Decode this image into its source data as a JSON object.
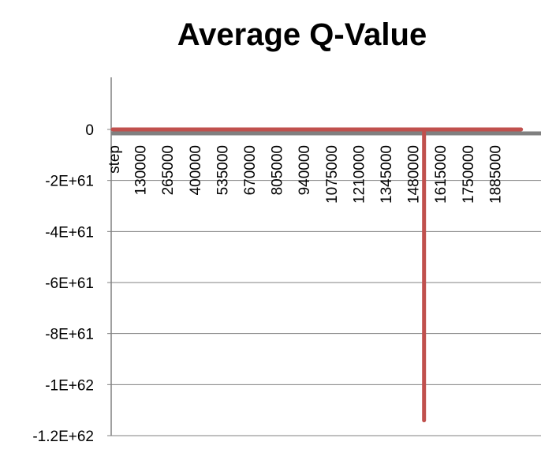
{
  "chart_data": {
    "type": "line",
    "title": "Average Q-Value",
    "xlabel": "",
    "ylabel": "",
    "x_first_label": "step",
    "x": [
      "130000",
      "265000",
      "400000",
      "535000",
      "670000",
      "805000",
      "940000",
      "1075000",
      "1210000",
      "1345000",
      "1480000",
      "1615000",
      "1750000",
      "1885000"
    ],
    "y_ticks": [
      "0",
      "-2E+61",
      "-4E+61",
      "-6E+61",
      "-8E+61",
      "-1E+62",
      "-1.2E+62"
    ],
    "ylim": [
      -1.2e+62,
      0
    ],
    "grid": true,
    "series": [
      {
        "color": "#C0504D",
        "points": [
          {
            "x": 0,
            "y": 0
          },
          {
            "x": 1540000,
            "y": 0
          },
          {
            "x": 1540000,
            "y": -1.14e+62
          },
          {
            "x": 1540000,
            "y": 0
          },
          {
            "x": 2020000,
            "y": 0
          }
        ]
      }
    ],
    "axis_color": "#808080",
    "grid_color": "#808080"
  }
}
